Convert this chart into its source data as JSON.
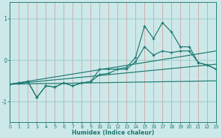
{
  "xlabel": "Humidex (Indice chaleur)",
  "bg_color": "#cce8e8",
  "line_color": "#1a7870",
  "grid_color_v": "#d4a0a0",
  "grid_color_h": "#9fcfcf",
  "x_ticks": [
    0,
    1,
    2,
    3,
    4,
    5,
    6,
    7,
    8,
    9,
    10,
    11,
    12,
    13,
    14,
    15,
    16,
    17,
    18,
    19,
    20,
    21,
    22,
    23
  ],
  "ylim": [
    -1.5,
    1.4
  ],
  "xlim": [
    0,
    23
  ],
  "yticks": [
    -1,
    0,
    1
  ],
  "line1_x": [
    0,
    1,
    2,
    3,
    4,
    5,
    6,
    7,
    8,
    9,
    10,
    11,
    12,
    13,
    14,
    15,
    16,
    17,
    18,
    19,
    20,
    21,
    22,
    23
  ],
  "line1_y": [
    -0.58,
    -0.55,
    -0.52,
    -0.9,
    -0.62,
    -0.65,
    -0.55,
    -0.62,
    -0.55,
    -0.52,
    -0.35,
    -0.32,
    -0.22,
    -0.22,
    -0.04,
    0.32,
    0.12,
    0.22,
    0.18,
    0.22,
    0.22,
    -0.06,
    -0.12,
    -0.22
  ],
  "line2_x": [
    0,
    1,
    2,
    3,
    4,
    5,
    6,
    7,
    8,
    9,
    10,
    11,
    12,
    13,
    14,
    15,
    16,
    17,
    18,
    19,
    20,
    21,
    22,
    23
  ],
  "line2_y": [
    -0.58,
    -0.55,
    -0.52,
    -0.9,
    -0.62,
    -0.65,
    -0.55,
    -0.62,
    -0.55,
    -0.52,
    -0.22,
    -0.22,
    -0.22,
    -0.18,
    0.06,
    0.82,
    0.52,
    0.9,
    0.68,
    0.32,
    0.32,
    -0.06,
    -0.12,
    -0.22
  ],
  "line3_x": [
    0,
    23
  ],
  "line3_y": [
    -0.58,
    -0.1
  ],
  "line4_x": [
    0,
    23
  ],
  "line4_y": [
    -0.58,
    0.22
  ],
  "line5_x": [
    0,
    23
  ],
  "line5_y": [
    -0.58,
    -0.5
  ]
}
